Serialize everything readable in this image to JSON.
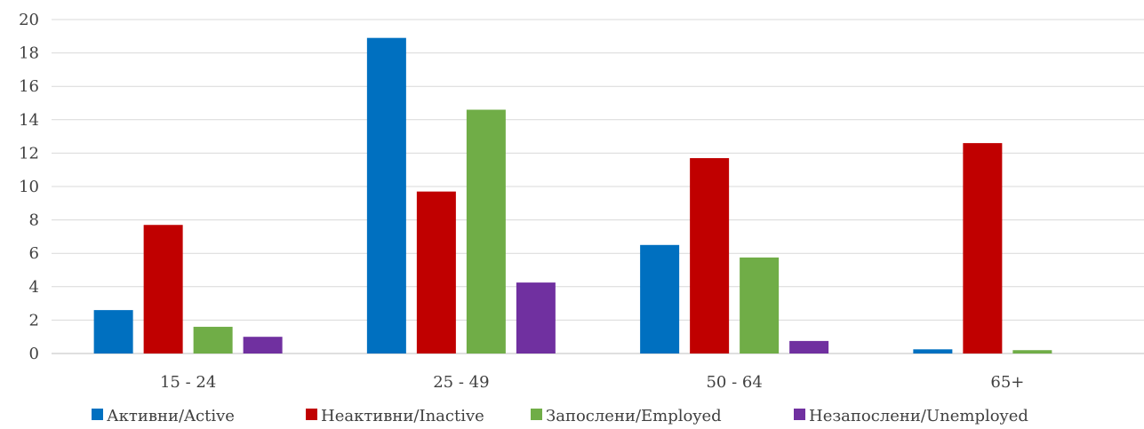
{
  "chart_data": {
    "type": "bar",
    "title": "",
    "xlabel": "",
    "ylabel": "",
    "categories": [
      "15 - 24",
      "25 - 49",
      "50 - 64",
      "65+"
    ],
    "series": [
      {
        "name": "Активни/Active",
        "color": "#0070C0",
        "values": [
          2.6,
          18.9,
          6.5,
          0.25
        ]
      },
      {
        "name": "Неактивни/Inactive",
        "color": "#C00000",
        "values": [
          7.7,
          9.7,
          11.7,
          12.6
        ]
      },
      {
        "name": "Запослени/Employed",
        "color": "#70AD47",
        "values": [
          1.6,
          14.6,
          5.75,
          0.2
        ]
      },
      {
        "name": "Незапослени/Unemployed",
        "color": "#7030A0",
        "values": [
          1.0,
          4.25,
          0.75,
          0
        ]
      }
    ],
    "ylim": [
      0,
      20
    ],
    "yticks": [
      0,
      2,
      4,
      6,
      8,
      10,
      12,
      14,
      16,
      18,
      20
    ],
    "grid": true,
    "legend_position": "bottom"
  }
}
